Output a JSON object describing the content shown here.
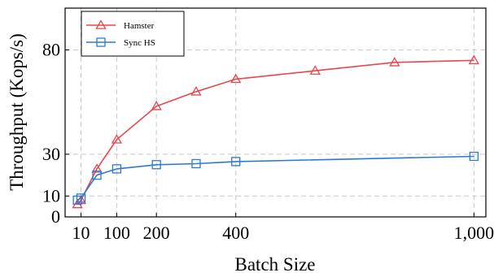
{
  "chart_data": {
    "type": "line",
    "title": "",
    "xlabel": "Batch Size",
    "ylabel": "Throughput (Kops/s)",
    "xlim": [
      -30,
      1030
    ],
    "ylim": [
      0,
      100
    ],
    "xticks": [
      10,
      100,
      200,
      400,
      1000
    ],
    "xtick_labels": [
      "10",
      "100",
      "200",
      "400",
      "1,000"
    ],
    "yticks": [
      0,
      10,
      30,
      80
    ],
    "ytick_labels": [
      "0",
      "10",
      "30",
      "80"
    ],
    "grid": true,
    "legend_position": "top-left",
    "series": [
      {
        "name": "Hamster",
        "color": "#e8474c",
        "marker": "triangle-icon",
        "x": [
          1,
          10,
          50,
          100,
          200,
          300,
          400,
          600,
          800,
          1000
        ],
        "y": [
          6,
          8,
          23,
          37,
          53,
          60,
          66,
          70,
          74,
          75
        ]
      },
      {
        "name": "Sync HS",
        "color": "#2a7ad4",
        "marker": "square-icon",
        "x": [
          1,
          10,
          50,
          100,
          200,
          300,
          400,
          1000
        ],
        "y": [
          8,
          9,
          20,
          23,
          25,
          25.5,
          26.5,
          29
        ]
      }
    ]
  }
}
